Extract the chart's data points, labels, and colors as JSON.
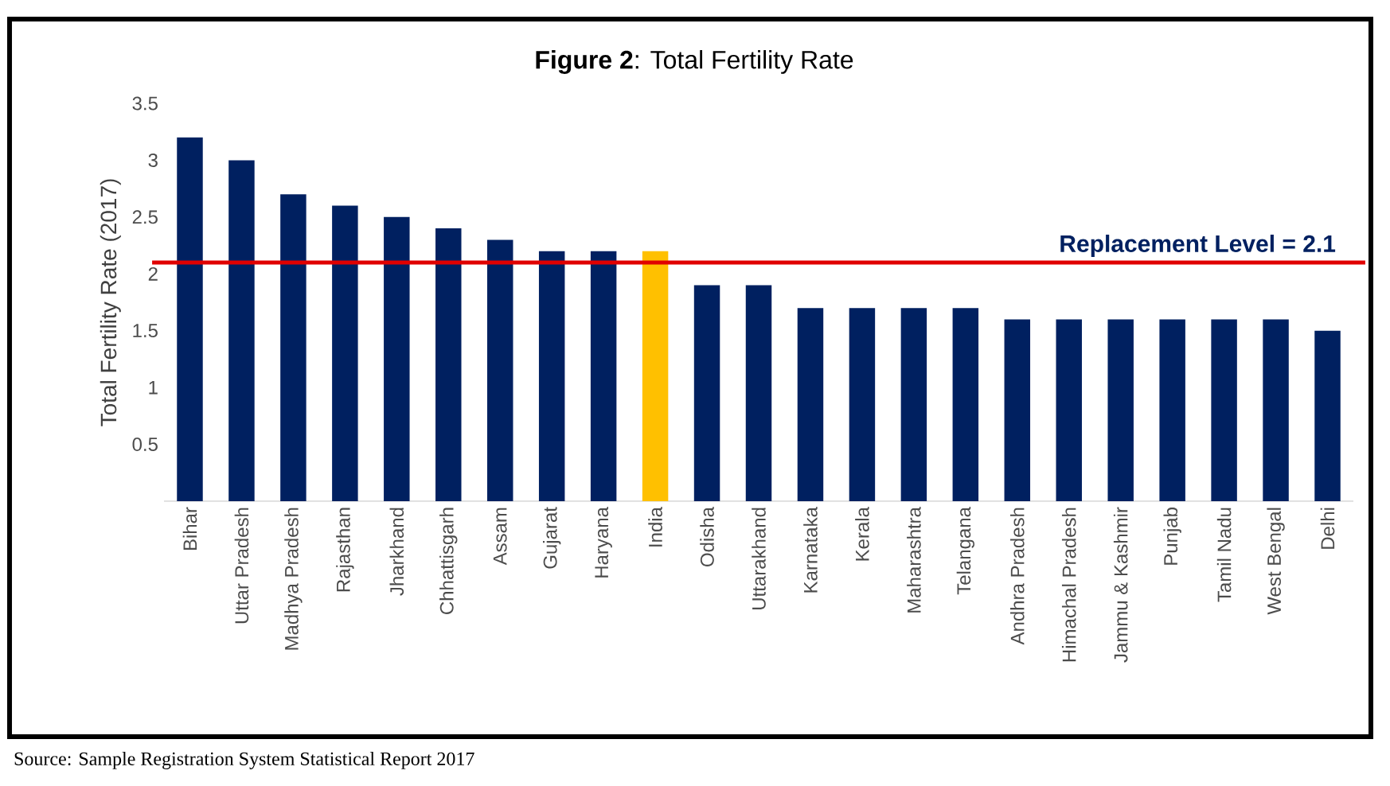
{
  "chart_data": {
    "type": "bar",
    "title": "**Figure 2**: Total Fertility Rate",
    "ylabel": "Total Fertility Rate (2017)",
    "categories": [
      "Bihar",
      "Uttar Pradesh",
      "Madhya Pradesh",
      "Rajasthan",
      "Jharkhand",
      "Chhattisgarh",
      "Assam",
      "Gujarat",
      "Haryana",
      "India",
      "Odisha",
      "Uttarakhand",
      "Karnataka",
      "Kerala",
      "Maharashtra",
      "Telangana",
      "Andhra Pradesh",
      "Himachal Pradesh",
      "Jammu & Kashmir",
      "Punjab",
      "Tamil Nadu",
      "West Bengal",
      "Delhi"
    ],
    "values": [
      3.2,
      3.0,
      2.7,
      2.6,
      2.5,
      2.4,
      2.3,
      2.2,
      2.2,
      2.2,
      1.9,
      1.9,
      1.7,
      1.7,
      1.7,
      1.7,
      1.6,
      1.6,
      1.6,
      1.6,
      1.6,
      1.6,
      1.5
    ],
    "colors": [
      "#002060",
      "#002060",
      "#002060",
      "#002060",
      "#002060",
      "#002060",
      "#002060",
      "#002060",
      "#002060",
      "#ffc000",
      "#002060",
      "#002060",
      "#002060",
      "#002060",
      "#002060",
      "#002060",
      "#002060",
      "#002060",
      "#002060",
      "#002060",
      "#002060",
      "#002060",
      "#002060"
    ],
    "ylim": [
      0,
      3.5
    ],
    "yticks": [
      0.5,
      1,
      1.5,
      2,
      2.5,
      3,
      3.5
    ],
    "ref_lines": [
      {
        "axis": "y",
        "value": 2.1,
        "label": "Replacement Level = 2.1",
        "color": "#e00000"
      }
    ],
    "annotations": [
      "Source: Sample Registration System Statistical Report 2017"
    ]
  }
}
